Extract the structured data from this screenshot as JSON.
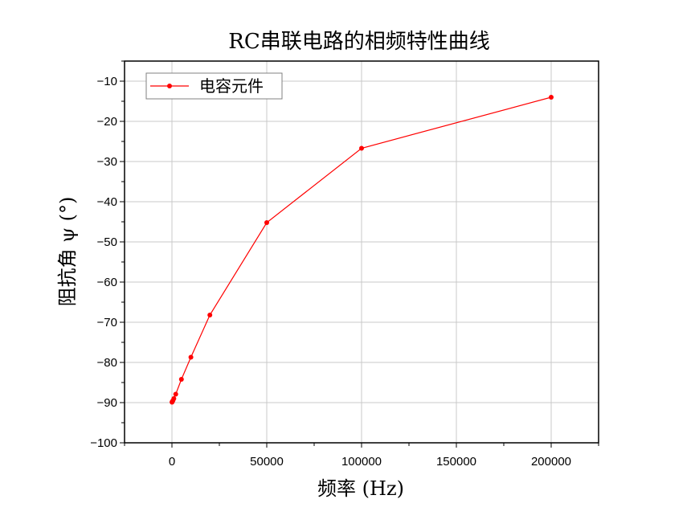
{
  "chart_data": {
    "type": "line",
    "title": "RC串联电路的相频特性曲线",
    "xlabel": "频率 (Hz)",
    "ylabel": "阻抗角 ψ (°)",
    "xlim": [
      -25000,
      225000
    ],
    "ylim": [
      -100,
      -5
    ],
    "xticks": [
      0,
      50000,
      100000,
      150000,
      200000
    ],
    "yticks": [
      -100,
      -90,
      -80,
      -70,
      -60,
      -50,
      -40,
      -30,
      -20,
      -10
    ],
    "grid": true,
    "legend_position": "top-left",
    "series": [
      {
        "name": "电容元件",
        "color": "#ff0000",
        "marker": "circle",
        "x": [
          50,
          100,
          500,
          1000,
          2000,
          5000,
          10000,
          20000,
          50000,
          100000,
          200000
        ],
        "y": [
          -89.9,
          -89.8,
          -89.5,
          -89.0,
          -87.9,
          -84.2,
          -78.7,
          -68.2,
          -45.2,
          -26.7,
          -14.0
        ]
      }
    ]
  }
}
